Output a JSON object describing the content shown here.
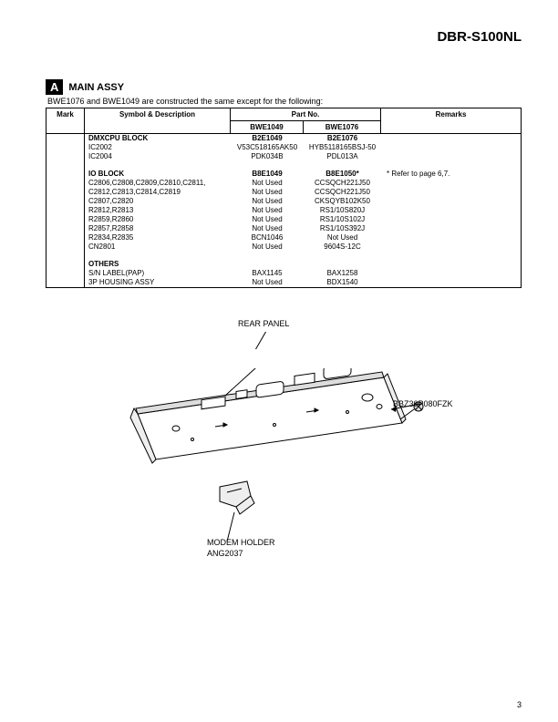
{
  "model": "DBR-S100NL",
  "section": {
    "badge": "A",
    "name": "MAIN  ASSY"
  },
  "subtitle": "BWE1076 and BWE1049 are constructed the same except for the following:",
  "headers": {
    "mark": "Mark",
    "symbol": "Symbol & Description",
    "partno": "Part No.",
    "p1": "BWE1049",
    "p2": "BWE1076",
    "remarks": "Remarks"
  },
  "blocks": [
    {
      "title": "DMXCPU  BLOCK",
      "title_p1": "B2E1049",
      "title_p2": "B2E1076",
      "title_rem": "",
      "rows": [
        {
          "sym": "IC2002",
          "p1": "V53C518165AK50",
          "p2": "HYB5118165BSJ-50",
          "rem": ""
        },
        {
          "sym": "IC2004",
          "p1": "PDK034B",
          "p2": "PDL013A",
          "rem": ""
        }
      ]
    },
    {
      "title": "IO  BLOCK",
      "title_p1": "B8E1049",
      "title_p2": "B8E1050*",
      "title_rem": "* Refer to page 6,7.",
      "rows": [
        {
          "sym": "C2806,C2808,C2809,C2810,C2811,",
          "p1": "Not  Used",
          "p2": "CCSQCH221J50",
          "rem": ""
        },
        {
          "sym": "C2812,C2813,C2814,C2819",
          "p1": "Not  Used",
          "p2": "CCSQCH221J50",
          "rem": ""
        },
        {
          "sym": "C2807,C2820",
          "p1": "Not  Used",
          "p2": "CKSQYB102K50",
          "rem": ""
        },
        {
          "sym": "R2812,R2813",
          "p1": "Not  Used",
          "p2": "RS1/10S820J",
          "rem": ""
        },
        {
          "sym": "R2859,R2860",
          "p1": "Not  Used",
          "p2": "RS1/10S102J",
          "rem": ""
        },
        {
          "sym": "R2857,R2858",
          "p1": "Not  Used",
          "p2": "RS1/10S392J",
          "rem": ""
        },
        {
          "sym": "R2834,R2835",
          "p1": "BCN1046",
          "p2": "Not  Used",
          "rem": ""
        },
        {
          "sym": "CN2801",
          "p1": "Not  Used",
          "p2": "9604S-12C",
          "rem": ""
        }
      ]
    },
    {
      "title": "OTHERS",
      "title_p1": "",
      "title_p2": "",
      "title_rem": "",
      "rows": [
        {
          "sym": "S/N  LABEL(PAP)",
          "p1": "BAX1145",
          "p2": "BAX1258",
          "rem": ""
        },
        {
          "sym": "3P  HOUSING  ASSY",
          "p1": "Not  Used",
          "p2": "BDX1540",
          "rem": ""
        }
      ]
    }
  ],
  "diagram": {
    "rear_panel_label": "REAR PANEL",
    "screw_label": "BBZ30P080FZK",
    "modem_label_l1": "MODEM HOLDER",
    "modem_label_l2": "ANG2037",
    "colors": {
      "stroke": "#000000",
      "fill": "#ffffff",
      "shade": "#cccccc"
    }
  },
  "page_number": "3"
}
